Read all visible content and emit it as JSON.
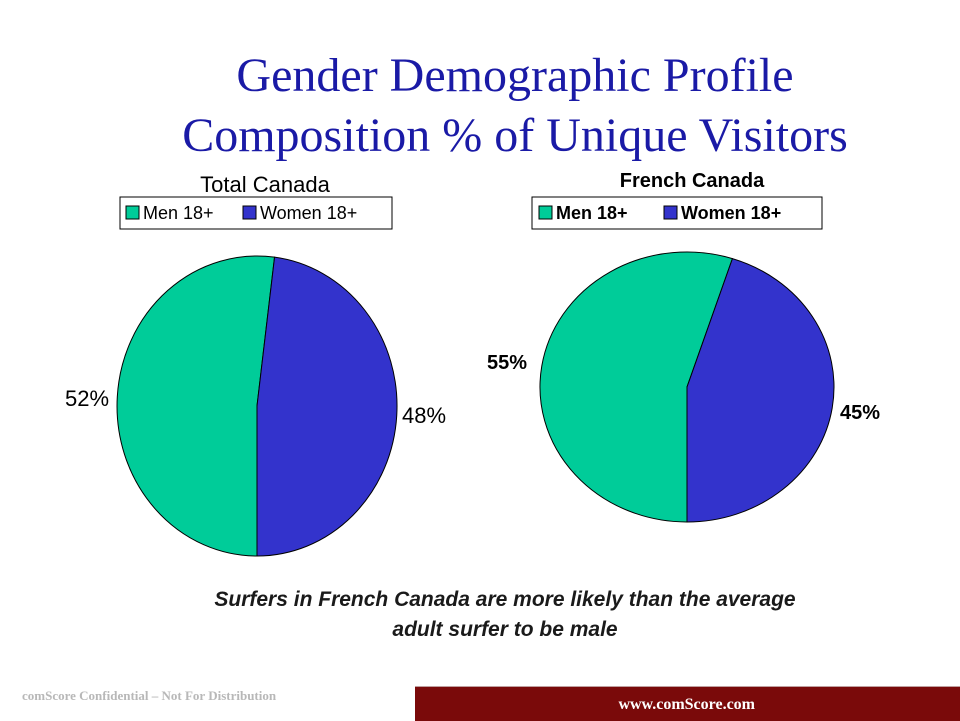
{
  "slide": {
    "title_line1": "Gender Demographic Profile",
    "title_line2": "Composition % of Unique Visitors",
    "caption_line1": "Surfers in French Canada are  more likely than the average",
    "caption_line2": "adult surfer to be male",
    "footer_left": "comScore Confidential – Not For Distribution",
    "footer_url": "www.comScore.com"
  },
  "colors": {
    "men": "#00cc99",
    "women": "#3333cc",
    "title": "#1a1aa6",
    "footer_bar": "#7a0a0a"
  },
  "chart_data": [
    {
      "type": "pie",
      "title": "Total Canada",
      "legend_position": "top",
      "series": [
        {
          "name": "Men 18+",
          "value": 52,
          "label": "52%"
        },
        {
          "name": "Women 18+",
          "value": 48,
          "label": "48%"
        }
      ]
    },
    {
      "type": "pie",
      "title": "French Canada",
      "legend_position": "top",
      "series": [
        {
          "name": "Men 18+",
          "value": 55,
          "label": "55%"
        },
        {
          "name": "Women 18+",
          "value": 45,
          "label": "45%"
        }
      ]
    }
  ]
}
